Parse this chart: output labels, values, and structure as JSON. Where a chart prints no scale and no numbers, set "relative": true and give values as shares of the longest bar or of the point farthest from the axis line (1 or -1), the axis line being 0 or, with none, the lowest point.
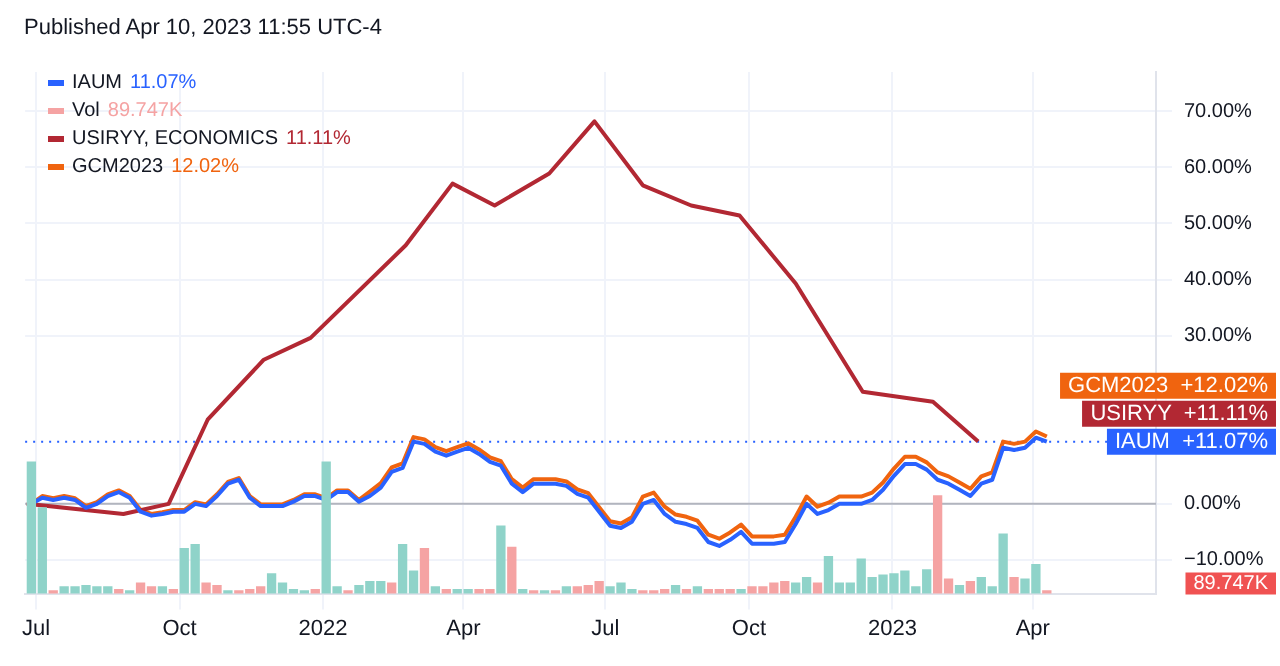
{
  "chart_data": [
    {
      "type": "line",
      "title": "Published Apr 10, 2023 11:55 UTC-4",
      "x": [
        "2021-06-28",
        "2021-07-05",
        "2021-07-12",
        "2021-07-19",
        "2021-07-26",
        "2021-08-02",
        "2021-08-09",
        "2021-08-16",
        "2021-08-23",
        "2021-08-30",
        "2021-09-06",
        "2021-09-13",
        "2021-09-20",
        "2021-09-27",
        "2021-10-04",
        "2021-10-11",
        "2021-10-18",
        "2021-10-25",
        "2021-11-01",
        "2021-11-08",
        "2021-11-15",
        "2021-11-22",
        "2021-11-29",
        "2021-12-06",
        "2021-12-13",
        "2021-12-20",
        "2021-12-27",
        "2022-01-03",
        "2022-01-10",
        "2022-01-17",
        "2022-01-24",
        "2022-01-31",
        "2022-02-07",
        "2022-02-14",
        "2022-02-21",
        "2022-02-28",
        "2022-03-07",
        "2022-03-14",
        "2022-03-21",
        "2022-03-28",
        "2022-04-04",
        "2022-04-11",
        "2022-04-18",
        "2022-04-25",
        "2022-05-02",
        "2022-05-09",
        "2022-05-16",
        "2022-05-23",
        "2022-05-30",
        "2022-06-06",
        "2022-06-13",
        "2022-06-20",
        "2022-06-27",
        "2022-07-04",
        "2022-07-11",
        "2022-07-18",
        "2022-07-25",
        "2022-08-01",
        "2022-08-08",
        "2022-08-15",
        "2022-08-22",
        "2022-08-29",
        "2022-09-05",
        "2022-09-12",
        "2022-09-19",
        "2022-09-26",
        "2022-10-03",
        "2022-10-10",
        "2022-10-17",
        "2022-10-24",
        "2022-10-31",
        "2022-11-07",
        "2022-11-14",
        "2022-11-21",
        "2022-11-28",
        "2022-12-05",
        "2022-12-12",
        "2022-12-19",
        "2022-12-26",
        "2023-01-02",
        "2023-01-09",
        "2023-01-16",
        "2023-01-23",
        "2023-01-30",
        "2023-02-06",
        "2023-02-13",
        "2023-02-20",
        "2023-02-27",
        "2023-03-06",
        "2023-03-13",
        "2023-03-20",
        "2023-03-27",
        "2023-04-03",
        "2023-04-10"
      ],
      "series": [
        {
          "name": "IAUM",
          "color": "#2962ff",
          "values": [
            0,
            1.1,
            0.7,
            1.1,
            0.7,
            -0.7,
            0,
            1.4,
            2.1,
            1.1,
            -1.4,
            -2.1,
            -1.8,
            -1.4,
            -1.4,
            0,
            -0.4,
            1.4,
            3.6,
            4.3,
            1.1,
            -0.4,
            -0.4,
            -0.4,
            0.4,
            1.4,
            1.4,
            0.7,
            2.1,
            2.1,
            0.4,
            1.4,
            2.9,
            5.7,
            6.4,
            11.1,
            10.7,
            9.3,
            8.6,
            9.3,
            10.0,
            8.9,
            7.5,
            6.8,
            3.6,
            2.1,
            3.6,
            3.6,
            3.6,
            3.2,
            1.8,
            1.1,
            -1.4,
            -3.9,
            -4.3,
            -3.2,
            0,
            0.7,
            -1.8,
            -3.2,
            -3.6,
            -4.3,
            -6.8,
            -7.5,
            -6.4,
            -5.0,
            -7.1,
            -7.1,
            -7.1,
            -6.8,
            -3.6,
            0,
            -1.8,
            -1.1,
            0,
            0,
            0,
            0.7,
            2.5,
            5.0,
            7.1,
            7.1,
            6.1,
            4.3,
            3.6,
            2.5,
            1.4,
            3.6,
            4.3,
            10.0,
            9.6,
            10.0,
            11.8,
            11.1
          ]
        },
        {
          "name": "USIRYY, ECONOMICS",
          "color": "#b22833",
          "x": [
            "2021-06-25",
            "2021-08-26",
            "2021-09-24",
            "2021-10-19",
            "2021-11-24",
            "2021-12-24",
            "2022-02-23",
            "2022-03-25",
            "2022-04-21",
            "2022-05-26",
            "2022-06-24",
            "2022-07-25",
            "2022-08-25",
            "2022-09-25",
            "2022-10-31",
            "2022-12-13",
            "2023-01-27",
            "2023-02-25"
          ],
          "values": [
            0,
            -1.8,
            0,
            15.0,
            25.7,
            29.6,
            46.1,
            57.1,
            53.2,
            58.9,
            68.2,
            56.8,
            53.2,
            51.4,
            39.3,
            20.0,
            18.2,
            11.1
          ]
        },
        {
          "name": "GCM2023",
          "color": "#f0640f",
          "values": [
            0,
            1.4,
            1.0,
            1.4,
            1.0,
            -0.4,
            0.3,
            1.7,
            2.4,
            1.4,
            -1.1,
            -1.8,
            -1.5,
            -1.1,
            -1.1,
            0.3,
            -0.1,
            1.7,
            3.9,
            4.6,
            1.4,
            -0.1,
            -0.1,
            -0.1,
            0.7,
            1.7,
            1.7,
            1.0,
            2.4,
            2.4,
            0.7,
            2.2,
            3.7,
            6.5,
            7.2,
            11.9,
            11.5,
            10.1,
            9.4,
            10.1,
            10.8,
            9.7,
            8.3,
            7.6,
            4.4,
            2.9,
            4.4,
            4.4,
            4.4,
            4.0,
            2.6,
            1.9,
            -0.6,
            -3.1,
            -3.5,
            -2.4,
            1.3,
            2.0,
            -0.5,
            -1.9,
            -2.3,
            -3.0,
            -5.5,
            -6.2,
            -5.1,
            -3.7,
            -5.8,
            -5.8,
            -5.8,
            -5.5,
            -2.3,
            1.3,
            -0.5,
            0.2,
            1.3,
            1.3,
            1.3,
            2.0,
            3.8,
            6.3,
            8.4,
            8.4,
            7.4,
            5.6,
            4.9,
            3.8,
            2.7,
            4.9,
            5.6,
            11.1,
            10.7,
            11.1,
            12.9,
            12.0
          ]
        }
      ],
      "annotations": [
        "11.07%",
        "11.11%",
        "12.02%",
        "GCM2023  +12.02%",
        "USIRYY  +11.11%",
        "IAUM  +11.07%"
      ],
      "ref_lines": [
        {
          "axis": "y",
          "value": 0,
          "color": "#b2b5be",
          "line_style": "solid"
        },
        {
          "axis": "y",
          "value": 11.07,
          "color": "#2962ff",
          "line_style": "dotted"
        }
      ],
      "xlim": [
        "2021-06-24",
        "2023-06-19"
      ],
      "xticks": [
        {
          "value": "2021-07-01",
          "label": "Jul"
        },
        {
          "value": "2021-10-01",
          "label": "Oct"
        },
        {
          "value": "2022-01-01",
          "label": "2022"
        },
        {
          "value": "2022-04-01",
          "label": "Apr"
        },
        {
          "value": "2022-07-01",
          "label": "Jul"
        },
        {
          "value": "2022-10-01",
          "label": "Oct"
        },
        {
          "value": "2023-01-01",
          "label": "2023"
        },
        {
          "value": "2023-04-01",
          "label": "Apr"
        }
      ],
      "ylim": [
        -16,
        77
      ],
      "yticks": [
        {
          "value": -10,
          "label": "−10.00%"
        },
        {
          "value": 0,
          "label": "0.00%"
        },
        {
          "value": 30,
          "label": "30.00%"
        },
        {
          "value": 40,
          "label": "40.00%"
        },
        {
          "value": 50,
          "label": "50.00%"
        },
        {
          "value": 60,
          "label": "60.00%"
        },
        {
          "value": 70,
          "label": "70.00%"
        }
      ],
      "grid": true,
      "legend": "top left",
      "marker": "none",
      "line_style": "solid"
    },
    {
      "type": "bar",
      "relative": true,
      "x": [
        "2021-06-28",
        "2021-07-05",
        "2021-07-12",
        "2021-07-19",
        "2021-07-26",
        "2021-08-02",
        "2021-08-09",
        "2021-08-16",
        "2021-08-23",
        "2021-08-30",
        "2021-09-06",
        "2021-09-13",
        "2021-09-20",
        "2021-09-27",
        "2021-10-04",
        "2021-10-11",
        "2021-10-18",
        "2021-10-25",
        "2021-11-01",
        "2021-11-08",
        "2021-11-15",
        "2021-11-22",
        "2021-11-29",
        "2021-12-06",
        "2021-12-13",
        "2021-12-20",
        "2021-12-27",
        "2022-01-03",
        "2022-01-10",
        "2022-01-17",
        "2022-01-24",
        "2022-01-31",
        "2022-02-07",
        "2022-02-14",
        "2022-02-21",
        "2022-02-28",
        "2022-03-07",
        "2022-03-14",
        "2022-03-21",
        "2022-03-28",
        "2022-04-04",
        "2022-04-11",
        "2022-04-18",
        "2022-04-25",
        "2022-05-02",
        "2022-05-09",
        "2022-05-16",
        "2022-05-23",
        "2022-05-30",
        "2022-06-06",
        "2022-06-13",
        "2022-06-20",
        "2022-06-27",
        "2022-07-04",
        "2022-07-11",
        "2022-07-18",
        "2022-07-25",
        "2022-08-01",
        "2022-08-08",
        "2022-08-15",
        "2022-08-22",
        "2022-08-29",
        "2022-09-05",
        "2022-09-12",
        "2022-09-19",
        "2022-09-26",
        "2022-10-03",
        "2022-10-10",
        "2022-10-17",
        "2022-10-24",
        "2022-10-31",
        "2022-11-07",
        "2022-11-14",
        "2022-11-21",
        "2022-11-28",
        "2022-12-05",
        "2022-12-12",
        "2022-12-19",
        "2022-12-26",
        "2023-01-02",
        "2023-01-09",
        "2023-01-16",
        "2023-01-23",
        "2023-01-30",
        "2023-02-06",
        "2023-02-13",
        "2023-02-20",
        "2023-02-27",
        "2023-03-06",
        "2023-03-13",
        "2023-03-20",
        "2023-03-27",
        "2023-04-03",
        "2023-04-10"
      ],
      "series": [
        {
          "name": "Vol",
          "values": [
            1.0,
            0.65,
            0.02,
            0.05,
            0.05,
            0.06,
            0.05,
            0.05,
            0.03,
            0.02,
            0.08,
            0.05,
            0.05,
            0.03,
            0.34,
            0.37,
            0.08,
            0.06,
            0.02,
            0.02,
            0.03,
            0.05,
            0.15,
            0.08,
            0.03,
            0.02,
            0.03,
            1.0,
            0.05,
            0.02,
            0.06,
            0.09,
            0.09,
            0.08,
            0.37,
            0.17,
            0.34,
            0.05,
            0.03,
            0.03,
            0.03,
            0.03,
            0.03,
            0.51,
            0.35,
            0.03,
            0.02,
            0.02,
            0.02,
            0.05,
            0.05,
            0.06,
            0.09,
            0.05,
            0.08,
            0.03,
            0.02,
            0.02,
            0.03,
            0.06,
            0.03,
            0.05,
            0.03,
            0.03,
            0.03,
            0.03,
            0.05,
            0.05,
            0.08,
            0.09,
            0.08,
            0.12,
            0.08,
            0.28,
            0.08,
            0.08,
            0.26,
            0.12,
            0.14,
            0.15,
            0.17,
            0.05,
            0.18,
            0.74,
            0.11,
            0.06,
            0.09,
            0.12,
            0.05,
            0.45,
            0.12,
            0.11,
            0.22,
            0.02
          ],
          "colors": [
            "#8fd3c9",
            "#8fd3c9",
            "#f5a3a3",
            "#8fd3c9",
            "#8fd3c9",
            "#8fd3c9",
            "#8fd3c9",
            "#8fd3c9",
            "#f5a3a3",
            "#8fd3c9",
            "#f5a3a3",
            "#f5a3a3",
            "#8fd3c9",
            "#f5a3a3",
            "#8fd3c9",
            "#8fd3c9",
            "#f5a3a3",
            "#f5a3a3",
            "#8fd3c9",
            "#f5a3a3",
            "#f5a3a3",
            "#f5a3a3",
            "#8fd3c9",
            "#8fd3c9",
            "#8fd3c9",
            "#8fd3c9",
            "#f5a3a3",
            "#8fd3c9",
            "#8fd3c9",
            "#f5a3a3",
            "#8fd3c9",
            "#8fd3c9",
            "#8fd3c9",
            "#f5a3a3",
            "#8fd3c9",
            "#8fd3c9",
            "#f5a3a3",
            "#8fd3c9",
            "#f5a3a3",
            "#8fd3c9",
            "#8fd3c9",
            "#f5a3a3",
            "#f5a3a3",
            "#8fd3c9",
            "#f5a3a3",
            "#8fd3c9",
            "#f5a3a3",
            "#8fd3c9",
            "#f5a3a3",
            "#8fd3c9",
            "#f5a3a3",
            "#f5a3a3",
            "#f5a3a3",
            "#8fd3c9",
            "#8fd3c9",
            "#8fd3c9",
            "#f5a3a3",
            "#f5a3a3",
            "#f5a3a3",
            "#8fd3c9",
            "#f5a3a3",
            "#8fd3c9",
            "#f5a3a3",
            "#f5a3a3",
            "#f5a3a3",
            "#8fd3c9",
            "#f5a3a3",
            "#f5a3a3",
            "#f5a3a3",
            "#f5a3a3",
            "#8fd3c9",
            "#8fd3c9",
            "#f5a3a3",
            "#8fd3c9",
            "#8fd3c9",
            "#8fd3c9",
            "#8fd3c9",
            "#8fd3c9",
            "#8fd3c9",
            "#8fd3c9",
            "#8fd3c9",
            "#8fd3c9",
            "#8fd3c9",
            "#f5a3a3",
            "#f5a3a3",
            "#8fd3c9",
            "#f5a3a3",
            "#8fd3c9",
            "#8fd3c9",
            "#8fd3c9",
            "#f5a3a3",
            "#8fd3c9",
            "#8fd3c9",
            "#f5a3a3"
          ]
        }
      ],
      "annotations": [
        "89.747K"
      ],
      "xlim": [
        "2021-06-24",
        "2023-06-19"
      ],
      "tick_labels": false,
      "legend": "top left"
    }
  ]
}
